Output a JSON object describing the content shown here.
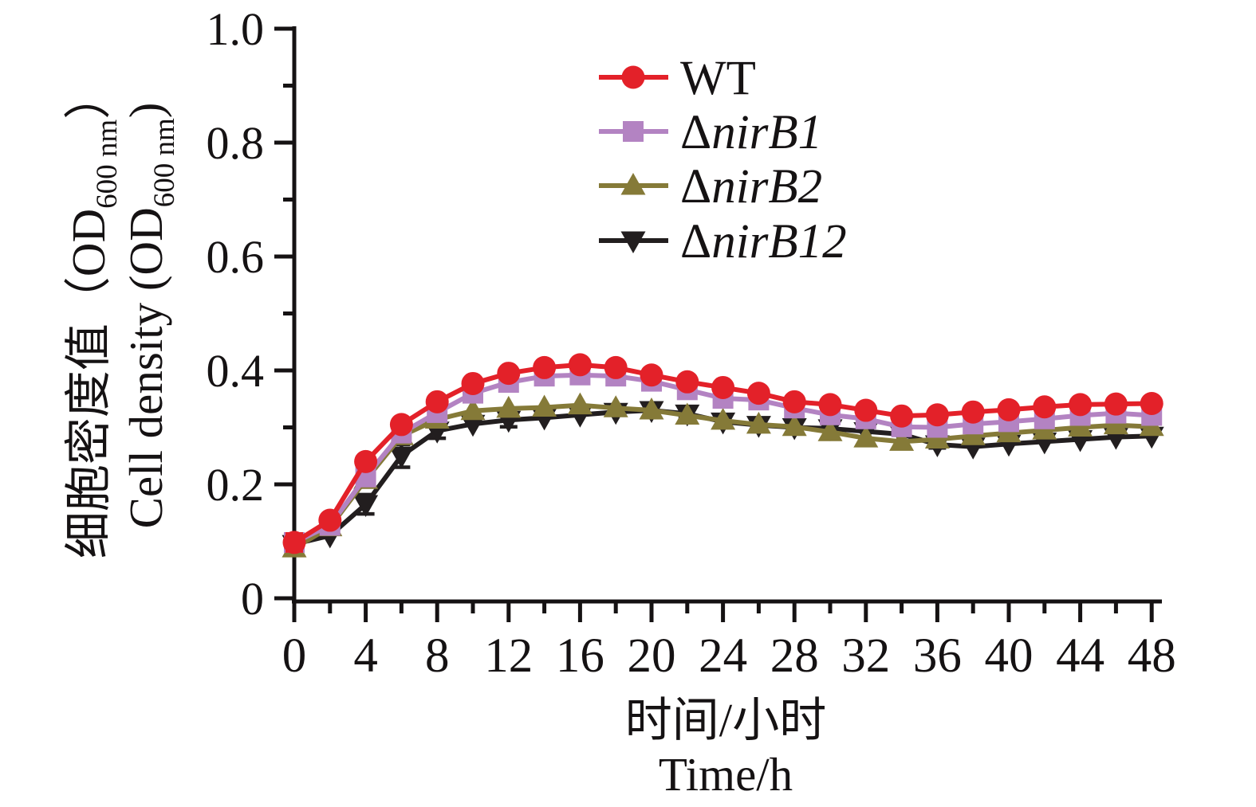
{
  "figure": {
    "y_axis": {
      "title_zh": {
        "pre": "细胞密度值（OD",
        "sub": "600 nm",
        "post": "）"
      },
      "title_en": {
        "pre": "Cell density (OD",
        "sub": "600 nm",
        "post": ")"
      },
      "major_ticks": [
        0,
        0.2,
        0.4,
        0.6,
        0.8,
        1.0
      ],
      "major_tick_labels": [
        "0",
        "0.2",
        "0.4",
        "0.6",
        "0.8",
        "1.0"
      ],
      "minor_ticks": [
        0.1,
        0.3,
        0.5,
        0.7,
        0.9
      ],
      "range": [
        0,
        1.0
      ]
    },
    "x_axis": {
      "title_zh": "时间/小时",
      "title_en": "Time/h",
      "major_ticks": [
        0,
        4,
        8,
        12,
        16,
        20,
        24,
        28,
        32,
        36,
        40,
        44,
        48
      ],
      "major_tick_labels": [
        "0",
        "4",
        "8",
        "12",
        "16",
        "20",
        "24",
        "28",
        "32",
        "36",
        "40",
        "44",
        "48"
      ],
      "minor_ticks": [
        2,
        6,
        10,
        14,
        18,
        22,
        26,
        30,
        34,
        38,
        42,
        46
      ],
      "range": [
        0,
        48
      ]
    },
    "colors": {
      "axis": "#151213",
      "wt": "#e32129",
      "nirB1": "#b383c2",
      "nirB2": "#857a38",
      "nirB12": "#221e1f"
    }
  },
  "chart_data": {
    "type": "line",
    "title": "",
    "xlabel_zh": "时间/小时",
    "xlabel_en": "Time/h",
    "ylabel_zh": "细胞密度值（OD600 nm）",
    "ylabel_en": "Cell density (OD600 nm)",
    "xlim": [
      0,
      48
    ],
    "ylim": [
      0,
      1.0
    ],
    "grid": false,
    "legend_position": "upper-right-inside",
    "x": [
      0,
      2,
      4,
      6,
      8,
      10,
      12,
      14,
      16,
      18,
      20,
      22,
      24,
      26,
      28,
      30,
      32,
      34,
      36,
      38,
      40,
      42,
      44,
      46,
      48
    ],
    "series": [
      {
        "name": "WT",
        "label": "WT",
        "label_prefix": "WT",
        "label_italic": "",
        "color": "#e32129",
        "marker": "circle",
        "values": [
          0.098,
          0.137,
          0.24,
          0.305,
          0.345,
          0.377,
          0.395,
          0.405,
          0.41,
          0.405,
          0.392,
          0.38,
          0.37,
          0.36,
          0.345,
          0.34,
          0.33,
          0.32,
          0.322,
          0.327,
          0.331,
          0.336,
          0.34,
          0.341,
          0.342
        ],
        "errors": [
          0.015,
          0,
          0,
          0,
          0,
          0,
          0,
          0,
          0,
          0,
          0,
          0,
          0,
          0,
          0,
          0,
          0,
          0,
          0,
          0,
          0,
          0,
          0,
          0,
          0
        ]
      },
      {
        "name": "nirB1",
        "label": "ΔnirB1",
        "label_prefix": "Δ",
        "label_italic": "nirB1",
        "color": "#b383c2",
        "marker": "square",
        "values": [
          0.098,
          0.128,
          0.213,
          0.29,
          0.326,
          0.36,
          0.379,
          0.39,
          0.392,
          0.39,
          0.381,
          0.366,
          0.351,
          0.348,
          0.334,
          0.322,
          0.315,
          0.301,
          0.3,
          0.306,
          0.31,
          0.315,
          0.321,
          0.325,
          0.321
        ],
        "errors": [
          0,
          0,
          0,
          0,
          0,
          0,
          0,
          0,
          0,
          0,
          0,
          0,
          0,
          0,
          0,
          0,
          0,
          0,
          0,
          0,
          0,
          0,
          0,
          0,
          0
        ]
      },
      {
        "name": "nirB2",
        "label": "ΔnirB2",
        "label_prefix": "Δ",
        "label_italic": "nirB2",
        "color": "#857a38",
        "marker": "triangle-up",
        "values": [
          0.088,
          0.125,
          0.208,
          0.285,
          0.314,
          0.329,
          0.333,
          0.335,
          0.339,
          0.334,
          0.33,
          0.321,
          0.312,
          0.305,
          0.301,
          0.292,
          0.281,
          0.275,
          0.279,
          0.285,
          0.29,
          0.295,
          0.3,
          0.304,
          0.301
        ],
        "errors": [
          0,
          0,
          0,
          0,
          0,
          0,
          0,
          0,
          0,
          0,
          0,
          0,
          0,
          0,
          0,
          0,
          0,
          0,
          0,
          0,
          0,
          0,
          0,
          0,
          0
        ]
      },
      {
        "name": "nirB12",
        "label": "ΔnirB12",
        "label_prefix": "Δ",
        "label_italic": "nirB12",
        "color": "#221e1f",
        "marker": "triangle-down",
        "values": [
          0.095,
          0.11,
          0.165,
          0.25,
          0.294,
          0.306,
          0.313,
          0.317,
          0.322,
          0.327,
          0.33,
          0.324,
          0.31,
          0.304,
          0.3,
          0.298,
          0.293,
          0.288,
          0.27,
          0.266,
          0.271,
          0.275,
          0.279,
          0.283,
          0.285
        ],
        "errors": [
          0.008,
          0,
          0.017,
          0.02,
          0.013,
          0,
          0.012,
          0,
          0,
          0,
          0,
          0.008,
          0,
          0,
          0,
          0,
          0,
          0,
          0.006,
          0,
          0,
          0,
          0,
          0,
          0
        ]
      }
    ]
  }
}
